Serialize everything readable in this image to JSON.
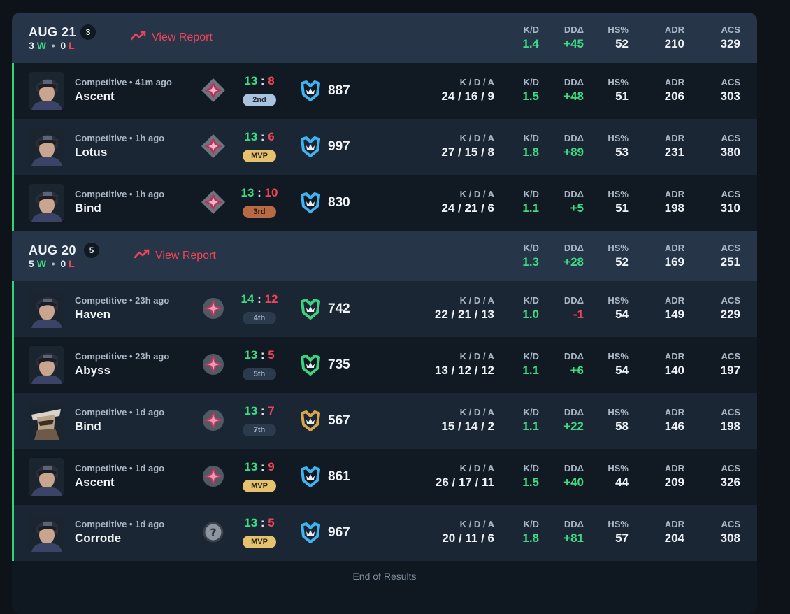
{
  "colors": {
    "win": "#3ddc84",
    "loss": "#ef4458",
    "header_bg": "#263547",
    "row_odd": "#111a22",
    "row_even": "#1a2633"
  },
  "stat_labels": {
    "kda": "K / D / A",
    "kd": "K/D",
    "dd": "DDΔ",
    "hs": "HS%",
    "adr": "ADR",
    "acs": "ACS"
  },
  "groups": [
    {
      "date": "AUG 21",
      "count": "3",
      "wins": "3",
      "w_label": "W",
      "sep": "•",
      "losses": "0",
      "l_label": "L",
      "report_label": "View Report",
      "summary": {
        "kd": "1.4",
        "dd": "+45",
        "hs": "52",
        "adr": "210",
        "acs": "329"
      },
      "matches": [
        {
          "mode": "Competitive • 41m ago",
          "map": "Ascent",
          "score_us": "13",
          "score_them": "8",
          "placement": "2nd",
          "rr": "887",
          "kda": "24 / 16 / 9",
          "kd": "1.5",
          "dd": "+48",
          "hs": "51",
          "adr": "206",
          "acs": "303",
          "rank_icon": "diamond-rank-icon",
          "rr_icon": "blue-crown-icon",
          "avatar": "agent-portrait-icon"
        },
        {
          "mode": "Competitive • 1h ago",
          "map": "Lotus",
          "score_us": "13",
          "score_them": "6",
          "placement": "MVP",
          "rr": "997",
          "kda": "27 / 15 / 8",
          "kd": "1.8",
          "dd": "+89",
          "hs": "53",
          "adr": "231",
          "acs": "380",
          "rank_icon": "diamond-rank-icon",
          "rr_icon": "blue-crown-icon",
          "avatar": "agent-portrait-icon"
        },
        {
          "mode": "Competitive • 1h ago",
          "map": "Bind",
          "score_us": "13",
          "score_them": "10",
          "placement": "3rd",
          "rr": "830",
          "kda": "24 / 21 / 6",
          "kd": "1.1",
          "dd": "+5",
          "hs": "51",
          "adr": "198",
          "acs": "310",
          "rank_icon": "diamond-rank-icon",
          "rr_icon": "blue-crown-icon",
          "avatar": "agent-portrait-icon"
        }
      ]
    },
    {
      "date": "AUG 20",
      "count": "5",
      "wins": "5",
      "w_label": "W",
      "sep": "•",
      "losses": "0",
      "l_label": "L",
      "report_label": "View Report",
      "summary": {
        "kd": "1.3",
        "dd": "+28",
        "hs": "52",
        "adr": "169",
        "acs": "251"
      },
      "matches": [
        {
          "mode": "Competitive • 23h ago",
          "map": "Haven",
          "score_us": "14",
          "score_them": "12",
          "placement": "4th",
          "rr": "742",
          "kda": "22 / 21 / 13",
          "kd": "1.0",
          "dd": "-1",
          "hs": "54",
          "adr": "149",
          "acs": "229",
          "rank_icon": "star-rank-icon",
          "rr_icon": "green-crown-icon",
          "avatar": "agent-portrait-icon"
        },
        {
          "mode": "Competitive • 23h ago",
          "map": "Abyss",
          "score_us": "13",
          "score_them": "5",
          "placement": "5th",
          "rr": "735",
          "kda": "13 / 12 / 12",
          "kd": "1.1",
          "dd": "+6",
          "hs": "54",
          "adr": "140",
          "acs": "197",
          "rank_icon": "star-rank-icon",
          "rr_icon": "green-crown-icon",
          "avatar": "agent-portrait-icon"
        },
        {
          "mode": "Competitive • 1d ago",
          "map": "Bind",
          "score_us": "13",
          "score_them": "7",
          "placement": "7th",
          "rr": "567",
          "kda": "15 / 14 / 2",
          "kd": "1.1",
          "dd": "+22",
          "hs": "58",
          "adr": "146",
          "acs": "198",
          "rank_icon": "star-rank-icon",
          "rr_icon": "gold-crown-icon",
          "avatar": "hat-agent-portrait-icon"
        },
        {
          "mode": "Competitive • 1d ago",
          "map": "Ascent",
          "score_us": "13",
          "score_them": "9",
          "placement": "MVP",
          "rr": "861",
          "kda": "26 / 17 / 11",
          "kd": "1.5",
          "dd": "+40",
          "hs": "44",
          "adr": "209",
          "acs": "326",
          "rank_icon": "star-rank-icon",
          "rr_icon": "blue-crown-icon",
          "avatar": "agent-portrait-icon"
        },
        {
          "mode": "Competitive • 1d ago",
          "map": "Corrode",
          "score_us": "13",
          "score_them": "5",
          "placement": "MVP",
          "rr": "967",
          "kda": "20 / 11 / 6",
          "kd": "1.8",
          "dd": "+81",
          "hs": "57",
          "adr": "204",
          "acs": "308",
          "rank_icon": "unknown-rank-icon",
          "rr_icon": "blue-crown-icon",
          "avatar": "agent-portrait-icon"
        }
      ]
    }
  ],
  "footer": {
    "end_text": "End of Results"
  }
}
